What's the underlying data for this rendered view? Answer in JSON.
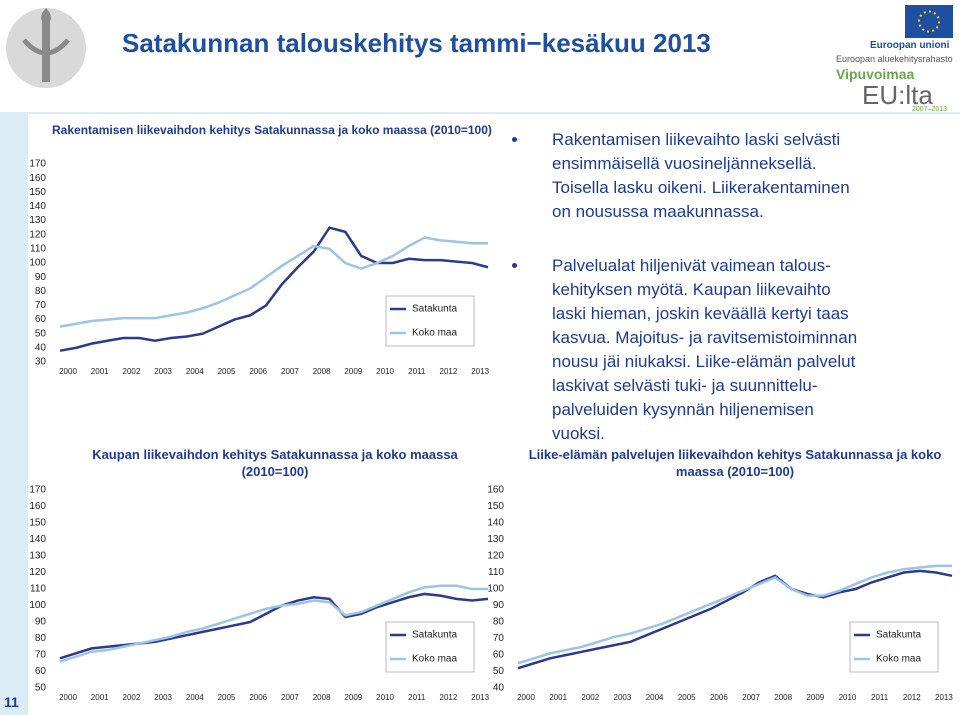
{
  "header": {
    "title": "Satakunnan talouskehitys tammi−kesäkuu 2013",
    "logo": {
      "org": "Euroopan unioni",
      "fund": "Euroopan aluekehitysrahasto",
      "slogan1": "Vipuvoimaa",
      "slogan2": "EU:lta",
      "period": "2007–2013"
    }
  },
  "bullets": [
    [
      "Rakentamisen liikevaihto laski selvästi",
      "ensimmäisellä vuosineljänneksellä.",
      "Toisella lasku oikeni. Liikerakentaminen",
      "on nousussa maakunnassa."
    ],
    [
      "Palvelualat hiljenivät vaimean talous-",
      "kehityksen myötä. Kaupan liikevaihto",
      "laski hieman, joskin keväällä kertyi taas",
      "kasvua. Majoitus- ja ravitsemistoiminnan",
      "nousu jäi niukaksi. Liike-elämän palvelut",
      "laskivat selvästi tuki- ja suunnittelu-",
      "palveluiden kysynnän hiljenemisen",
      "vuoksi."
    ]
  ],
  "page_number": 11,
  "chart_data": [
    {
      "type": "line",
      "title": "Rakentamisen liikevaihdon kehitys Satakunnassa ja koko maassa (2010=100)",
      "x": [
        2000,
        2000.5,
        2001,
        2001.5,
        2002,
        2002.5,
        2003,
        2003.5,
        2004,
        2004.5,
        2005,
        2005.5,
        2006,
        2006.5,
        2007,
        2007.5,
        2008,
        2008.5,
        2009,
        2009.5,
        2010,
        2010.5,
        2011,
        2011.5,
        2012,
        2012.5,
        2013,
        2013.5
      ],
      "xlim": [
        2000,
        2013.5
      ],
      "xticks": [
        2000,
        2001,
        2002,
        2003,
        2004,
        2005,
        2006,
        2007,
        2008,
        2009,
        2010,
        2011,
        2012,
        2013
      ],
      "ylim": [
        30,
        170
      ],
      "yticks": [
        30,
        40,
        50,
        60,
        70,
        80,
        90,
        100,
        110,
        120,
        130,
        140,
        150,
        160,
        170
      ],
      "grid": false,
      "legend": "lower right",
      "series": [
        {
          "name": "Satakunta",
          "color": "#2b3990",
          "values": [
            38,
            40,
            43,
            45,
            47,
            47,
            45,
            47,
            48,
            50,
            55,
            60,
            63,
            70,
            85,
            97,
            108,
            125,
            122,
            105,
            100,
            100,
            103,
            102,
            102,
            101,
            100,
            97
          ]
        },
        {
          "name": "Koko maa",
          "color": "#9dc3e6",
          "values": [
            55,
            57,
            59,
            60,
            61,
            61,
            61,
            63,
            65,
            68,
            72,
            77,
            82,
            90,
            98,
            105,
            112,
            110,
            100,
            96,
            100,
            105,
            112,
            118,
            116,
            115,
            114,
            114
          ]
        }
      ]
    },
    {
      "type": "line",
      "title": "Kaupan liikevaihdon kehitys Satakunnassa ja koko maassa (2010=100)",
      "x": [
        2000,
        2000.5,
        2001,
        2001.5,
        2002,
        2002.5,
        2003,
        2003.5,
        2004,
        2004.5,
        2005,
        2005.5,
        2006,
        2006.5,
        2007,
        2007.5,
        2008,
        2008.5,
        2009,
        2009.5,
        2010,
        2010.5,
        2011,
        2011.5,
        2012,
        2012.5,
        2013,
        2013.5
      ],
      "xlim": [
        2000,
        2013.5
      ],
      "xticks": [
        2000,
        2001,
        2002,
        2003,
        2004,
        2005,
        2006,
        2007,
        2008,
        2009,
        2010,
        2011,
        2012,
        2013
      ],
      "ylim": [
        50,
        170
      ],
      "yticks": [
        50,
        60,
        70,
        80,
        90,
        100,
        110,
        120,
        130,
        140,
        150,
        160,
        170
      ],
      "grid": false,
      "legend": "lower right",
      "series": [
        {
          "name": "Satakunta",
          "color": "#2b3990",
          "values": [
            68,
            71,
            74,
            75,
            76,
            77,
            78,
            80,
            82,
            84,
            86,
            88,
            90,
            95,
            100,
            103,
            105,
            104,
            93,
            95,
            99,
            102,
            105,
            107,
            106,
            104,
            103,
            104
          ]
        },
        {
          "name": "Koko maa",
          "color": "#9dc3e6",
          "values": [
            66,
            69,
            72,
            73,
            75,
            77,
            79,
            81,
            84,
            86,
            89,
            92,
            95,
            98,
            100,
            101,
            103,
            102,
            94,
            96,
            100,
            104,
            108,
            111,
            112,
            112,
            110,
            110
          ]
        }
      ]
    },
    {
      "type": "line",
      "title": "Liike-elämän palvelujen liikevaihdon kehitys Satakunnassa ja koko maassa (2010=100)",
      "x": [
        2000,
        2000.5,
        2001,
        2001.5,
        2002,
        2002.5,
        2003,
        2003.5,
        2004,
        2004.5,
        2005,
        2005.5,
        2006,
        2006.5,
        2007,
        2007.5,
        2008,
        2008.5,
        2009,
        2009.5,
        2010,
        2010.5,
        2011,
        2011.5,
        2012,
        2012.5,
        2013,
        2013.5
      ],
      "xlim": [
        2000,
        2013.5
      ],
      "xticks": [
        2000,
        2001,
        2002,
        2003,
        2004,
        2005,
        2006,
        2007,
        2008,
        2009,
        2010,
        2011,
        2012,
        2013
      ],
      "ylim": [
        40,
        160
      ],
      "yticks": [
        40,
        50,
        60,
        70,
        80,
        90,
        100,
        110,
        120,
        130,
        140,
        150,
        160
      ],
      "grid": false,
      "legend": "lower right",
      "series": [
        {
          "name": "Satakunta",
          "color": "#2b3990",
          "values": [
            52,
            55,
            58,
            60,
            62,
            64,
            66,
            68,
            72,
            76,
            80,
            84,
            88,
            93,
            98,
            104,
            108,
            100,
            97,
            95,
            98,
            100,
            104,
            107,
            110,
            111,
            110,
            108
          ]
        },
        {
          "name": "Koko maa",
          "color": "#9dc3e6",
          "values": [
            55,
            58,
            61,
            63,
            65,
            68,
            71,
            73,
            76,
            79,
            83,
            87,
            91,
            95,
            99,
            103,
            107,
            100,
            96,
            96,
            99,
            103,
            107,
            110,
            112,
            113,
            114,
            114
          ]
        }
      ]
    }
  ]
}
